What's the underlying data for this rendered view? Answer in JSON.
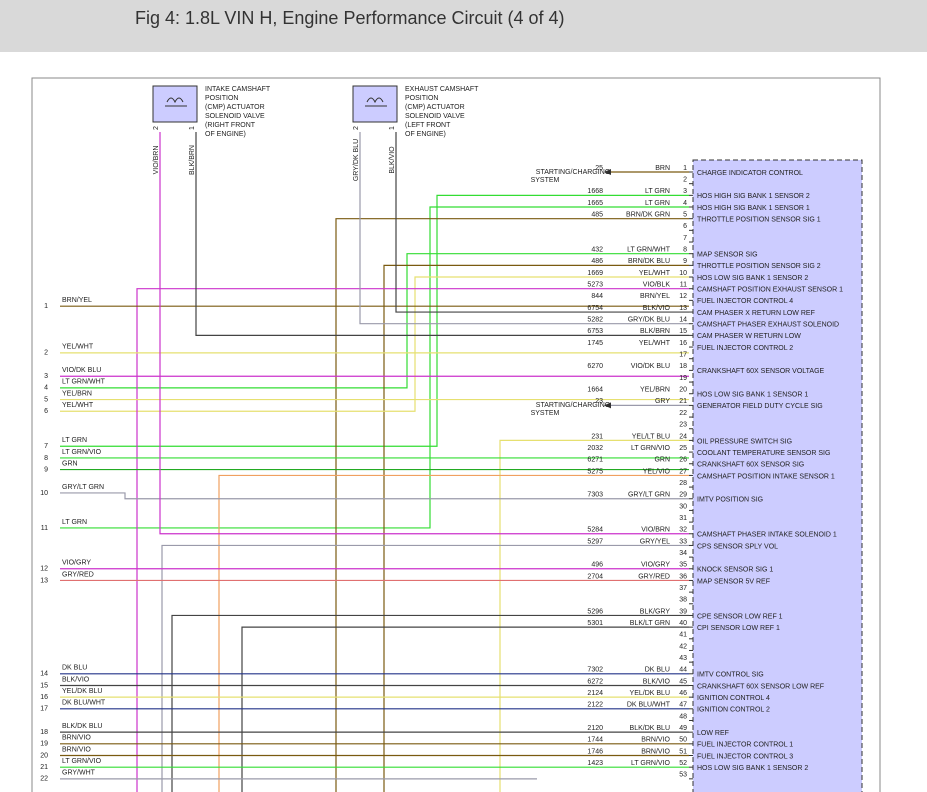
{
  "header": {
    "title": "Fig 4: 1.8L VIN H, Engine Performance Circuit (4 of 4)"
  },
  "components": [
    {
      "label": [
        "INTAKE CAMSHAFT",
        "POSITION",
        "(CMP) ACTUATOR",
        "SOLENOID VALVE",
        "(RIGHT FRONT",
        "OF ENGINE)"
      ],
      "pins": [
        "2",
        "1"
      ],
      "wires": [
        "VIO/BRN",
        "BLK/BRN"
      ]
    },
    {
      "label": [
        "EXHAUST CAMSHAFT",
        "POSITION",
        "(CMP) ACTUATOR",
        "SOLENOID VALVE",
        "(LEFT FRONT",
        "OF ENGINE)"
      ],
      "pins": [
        "2",
        "1"
      ],
      "wires": [
        "GRY/DK BLU",
        "BLK/VIO"
      ]
    }
  ],
  "system_labels": [
    [
      "STARTING/CHARGING",
      "SYSTEM"
    ],
    [
      "STARTING/CHARGING",
      "SYSTEM"
    ]
  ],
  "connector": {
    "pins": [
      {
        "pin": 1,
        "circuit": "25",
        "color": "BRN",
        "function": "CHARGE INDICATOR CONTROL"
      },
      {
        "pin": 2
      },
      {
        "pin": 3,
        "circuit": "1668",
        "color": "LT GRN",
        "function": "HOS HIGH SIG BANK 1 SENSOR 2"
      },
      {
        "pin": 4,
        "circuit": "1665",
        "color": "LT GRN",
        "function": "HOS HIGH SIG BANK 1 SENSOR 1"
      },
      {
        "pin": 5,
        "circuit": "485",
        "color": "BRN/DK GRN",
        "function": "THROTTLE POSITION SENSOR SIG 1"
      },
      {
        "pin": 6
      },
      {
        "pin": 7
      },
      {
        "pin": 8,
        "circuit": "432",
        "color": "LT GRN/WHT",
        "function": "MAP SENSOR SIG"
      },
      {
        "pin": 9,
        "circuit": "486",
        "color": "BRN/DK BLU",
        "function": "THROTTLE POSITION SENSOR SIG 2"
      },
      {
        "pin": 10,
        "circuit": "1669",
        "color": "YEL/WHT",
        "function": "HOS LOW SIG BANK 1 SENSOR 2"
      },
      {
        "pin": 11,
        "circuit": "5273",
        "color": "VIO/BLK",
        "function": "CAMSHAFT POSITION EXHAUST SENSOR 1"
      },
      {
        "pin": 12,
        "circuit": "844",
        "color": "BRN/YEL",
        "function": "FUEL INJECTOR CONTROL 4"
      },
      {
        "pin": 13,
        "circuit": "6754",
        "color": "BLK/VIO",
        "function": "CAM PHASER X RETURN LOW REF"
      },
      {
        "pin": 14,
        "circuit": "5282",
        "color": "GRY/DK BLU",
        "function": "CAMSHAFT PHASER EXHAUST SOLENOID"
      },
      {
        "pin": 15,
        "circuit": "6753",
        "color": "BLK/BRN",
        "function": "CAM PHASER W RETURN LOW"
      },
      {
        "pin": 16,
        "circuit": "1745",
        "color": "YEL/WHT",
        "function": "FUEL INJECTOR CONTROL 2"
      },
      {
        "pin": 17
      },
      {
        "pin": 18,
        "circuit": "6270",
        "color": "VIO/DK BLU",
        "function": "CRANKSHAFT 60X SENSOR VOLTAGE"
      },
      {
        "pin": 19
      },
      {
        "pin": 20,
        "circuit": "1664",
        "color": "YEL/BRN",
        "function": "HOS LOW SIG BANK 1 SENSOR 1"
      },
      {
        "pin": 21,
        "circuit": "23",
        "color": "GRY",
        "function": "GENERATOR FIELD DUTY CYCLE SIG"
      },
      {
        "pin": 22
      },
      {
        "pin": 23
      },
      {
        "pin": 24,
        "circuit": "231",
        "color": "YEL/LT BLU",
        "function": "OIL PRESSURE SWITCH SIG"
      },
      {
        "pin": 25,
        "circuit": "2032",
        "color": "LT GRN/VIO",
        "function": "COOLANT TEMPERATURE SENSOR SIG"
      },
      {
        "pin": 26,
        "circuit": "6271",
        "color": "GRN",
        "function": "CRANKSHAFT 60X SENSOR SIG"
      },
      {
        "pin": 27,
        "circuit": "5275",
        "color": "YEL/VIO",
        "function": "CAMSHAFT POSITION INTAKE SENSOR 1"
      },
      {
        "pin": 28
      },
      {
        "pin": 29,
        "circuit": "7303",
        "color": "GRY/LT GRN",
        "function": "IMTV POSITION SIG"
      },
      {
        "pin": 30
      },
      {
        "pin": 31
      },
      {
        "pin": 32,
        "circuit": "5284",
        "color": "VIO/BRN",
        "function": "CAMSHAFT PHASER INTAKE SOLENOID 1"
      },
      {
        "pin": 33,
        "circuit": "5297",
        "color": "GRY/YEL",
        "function": "CPS SENSOR SPLY VOL"
      },
      {
        "pin": 34
      },
      {
        "pin": 35,
        "circuit": "496",
        "color": "VIO/GRY",
        "function": "KNOCK SENSOR SIG 1"
      },
      {
        "pin": 36,
        "circuit": "2704",
        "color": "GRY/RED",
        "function": "MAP SENSOR 5V REF"
      },
      {
        "pin": 37
      },
      {
        "pin": 38
      },
      {
        "pin": 39,
        "circuit": "5296",
        "color": "BLK/GRY",
        "function": "CPE SENSOR LOW REF 1"
      },
      {
        "pin": 40,
        "circuit": "5301",
        "color": "BLK/LT GRN",
        "function": "CPI SENSOR LOW REF 1"
      },
      {
        "pin": 41
      },
      {
        "pin": 42
      },
      {
        "pin": 43
      },
      {
        "pin": 44,
        "circuit": "7302",
        "color": "DK BLU",
        "function": "IMTV CONTROL SIG"
      },
      {
        "pin": 45,
        "circuit": "6272",
        "color": "BLK/VIO",
        "function": "CRANKSHAFT 60X SENSOR LOW REF"
      },
      {
        "pin": 46,
        "circuit": "2124",
        "color": "YEL/DK BLU",
        "function": "IGNITION CONTROL 4"
      },
      {
        "pin": 47,
        "circuit": "2122",
        "color": "DK BLU/WHT",
        "function": "IGNITION CONTROL 2"
      },
      {
        "pin": 48
      },
      {
        "pin": 49,
        "circuit": "2120",
        "color": "BLK/DK BLU",
        "function": "LOW REF"
      },
      {
        "pin": 50,
        "circuit": "1744",
        "color": "BRN/VIO",
        "function": "FUEL INJECTOR CONTROL 1"
      },
      {
        "pin": 51,
        "circuit": "1746",
        "color": "BRN/VIO",
        "function": "FUEL INJECTOR CONTROL 3"
      },
      {
        "pin": 52,
        "circuit": "1423",
        "color": "LT GRN/VIO",
        "function": "HOS LOW SIG BANK 1 SENSOR 2"
      },
      {
        "pin": 53
      }
    ]
  },
  "left_wires": [
    {
      "num": "1",
      "color": "BRN/YEL"
    },
    {
      "num": "2",
      "color": "YEL/WHT"
    },
    {
      "num": "3",
      "color": "VIO/DK BLU"
    },
    {
      "num": "4",
      "color": "LT GRN/WHT"
    },
    {
      "num": "5",
      "color": "YEL/BRN"
    },
    {
      "num": "6",
      "color": "YEL/WHT"
    },
    {
      "num": "7",
      "color": "LT GRN"
    },
    {
      "num": "8",
      "color": "LT GRN/VIO"
    },
    {
      "num": "9",
      "color": "GRN"
    },
    {
      "num": "10",
      "color": "GRY/LT GRN"
    },
    {
      "num": "11",
      "color": "LT GRN"
    },
    {
      "num": "12",
      "color": "VIO/GRY"
    },
    {
      "num": "13",
      "color": "GRY/RED"
    },
    {
      "num": "14",
      "color": "DK BLU"
    },
    {
      "num": "15",
      "color": "BLK/VIO"
    },
    {
      "num": "16",
      "color": "YEL/DK BLU"
    },
    {
      "num": "17",
      "color": "DK BLU/WHT"
    },
    {
      "num": "18",
      "color": "BLK/DK BLU"
    },
    {
      "num": "19",
      "color": "BRN/VIO"
    },
    {
      "num": "20",
      "color": "BRN/VIO"
    },
    {
      "num": "21",
      "color": "LT GRN/VIO"
    },
    {
      "num": "22",
      "color": "GRY/WHT"
    }
  ]
}
